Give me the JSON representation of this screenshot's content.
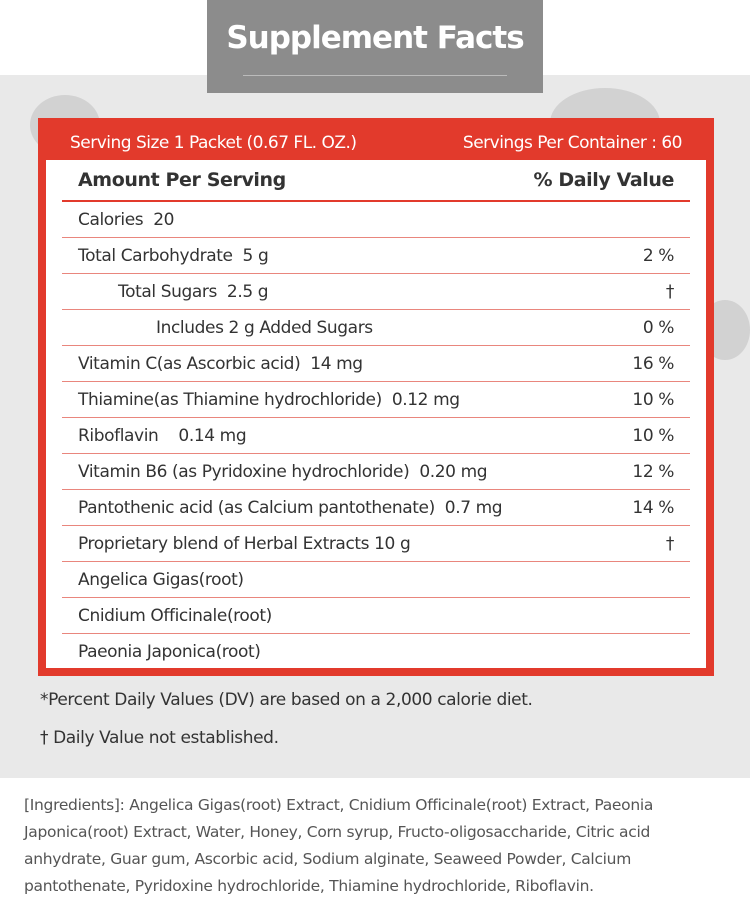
{
  "header": {
    "title": "Supplement Facts"
  },
  "facts": {
    "serving_size": "Serving Size 1 Packet (0.67 FL. OZ.)",
    "servings_per_container": "Servings Per Container : 60",
    "columns": [
      "Amount Per Serving",
      "% Daily Value"
    ],
    "rows": [
      [
        "Calories  20"
      ],
      [
        "Total Carbohydrate  5 g",
        "2 %"
      ],
      [
        "Total Sugars  2.5 g",
        "†"
      ],
      [
        "Includes 2 g Added Sugars",
        "0 %"
      ],
      [
        "Vitamin C(as Ascorbic acid)  14 mg",
        "16 %"
      ],
      [
        "Thiamine(as Thiamine hydrochloride)  0.12 mg",
        "10 %"
      ],
      [
        "Riboflavin    0.14 mg",
        "10 %"
      ],
      [
        "Vitamin B6 (as Pyridoxine hydrochloride)  0.20 mg",
        "12 %"
      ],
      [
        "Pantothenic acid (as Calcium pantothenate)  0.7 mg",
        "14 %"
      ],
      [
        "Proprietary blend of Herbal Extracts 10 g",
        "†"
      ],
      [
        "Angelica Gigas(root)"
      ],
      [
        "Cnidium Officinale(root)"
      ],
      [
        "Paeonia Japonica(root)"
      ]
    ]
  },
  "footnotes": [
    "*Percent Daily Values (DV) are based on a 2,000 calorie diet.",
    "† Daily Value not established."
  ],
  "ingredients": "[Ingredients]: Angelica Gigas(root) Extract, Cnidium Officinale(root) Extract, Paeonia Japonica(root) Extract, Water, Honey, Corn syrup, Fructo-oligosaccharide, Citric acid anhydrate, Guar gum, Ascorbic acid, Sodium alginate, Seaweed Powder, Calcium pantothenate, Pyridoxine hydrochloride, Thiamine hydrochloride, Riboflavin."
}
